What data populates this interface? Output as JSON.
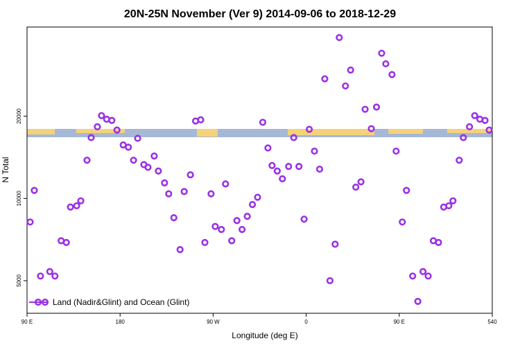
{
  "chart_data": {
    "type": "scatter",
    "title": "20N-25N November (Ver 9)   2014-09-06 to 2018-12-29",
    "xlabel": "Longitude (deg E)",
    "ylabel": "N Total",
    "xlim": [
      90,
      540
    ],
    "xticks": [
      {
        "value": 90,
        "label": "90 E"
      },
      180,
      {
        "value": 270,
        "label": "90 W"
      },
      {
        "value": 360,
        "label": "0"
      },
      {
        "value": 450,
        "label": "90 E"
      },
      540
    ],
    "ylim": [
      3800,
      42400
    ],
    "yticks": [
      5000,
      10000,
      20000
    ],
    "log_y": true,
    "legend": "bottom-left",
    "series": [
      {
        "name": "Land (Nadir&Glint) and Ocean (Glint)",
        "color": "#9b30e6",
        "x": [
          93,
          97,
          103,
          112,
          117,
          123,
          128,
          132,
          138,
          142,
          148,
          152,
          158,
          162,
          167,
          172,
          177,
          183,
          188,
          193,
          197,
          203,
          207,
          213,
          217,
          223,
          227,
          232,
          238,
          242,
          248,
          253,
          258,
          262,
          268,
          272,
          278,
          282,
          288,
          293,
          298,
          303,
          308,
          313,
          318,
          323,
          327,
          332,
          337,
          343,
          348,
          353,
          358,
          363,
          368,
          373,
          378,
          383,
          388,
          392,
          398,
          403,
          408,
          413,
          417,
          423,
          428,
          433,
          437,
          443,
          447,
          453,
          457,
          463,
          468,
          473,
          478,
          483,
          488,
          493,
          498,
          502,
          508,
          512,
          518,
          523,
          528,
          533,
          537
        ],
        "values": [
          8200,
          10700,
          5200,
          5400,
          5200,
          7000,
          6900,
          9300,
          9400,
          9800,
          13800,
          16700,
          18300,
          20100,
          19500,
          19300,
          17800,
          15700,
          15400,
          13800,
          16600,
          13300,
          13000,
          14300,
          12600,
          11400,
          10400,
          8500,
          6500,
          10600,
          12200,
          19200,
          19400,
          6900,
          10400,
          7900,
          7700,
          11300,
          7000,
          8300,
          7700,
          8600,
          9500,
          10100,
          19000,
          15300,
          13200,
          12600,
          11800,
          13100,
          16700,
          13100,
          8400,
          17900,
          14900,
          12800,
          27400,
          5000,
          6800,
          38800,
          25800,
          29500,
          11000,
          11500,
          21200,
          18000,
          21600,
          34000,
          31100,
          28400,
          14900,
          8200,
          10700,
          5200,
          4200,
          5400,
          5200,
          7000,
          6900,
          9300,
          9400,
          9800,
          13800,
          16700,
          18300,
          20100,
          19500,
          19300,
          17800
        ]
      }
    ]
  }
}
